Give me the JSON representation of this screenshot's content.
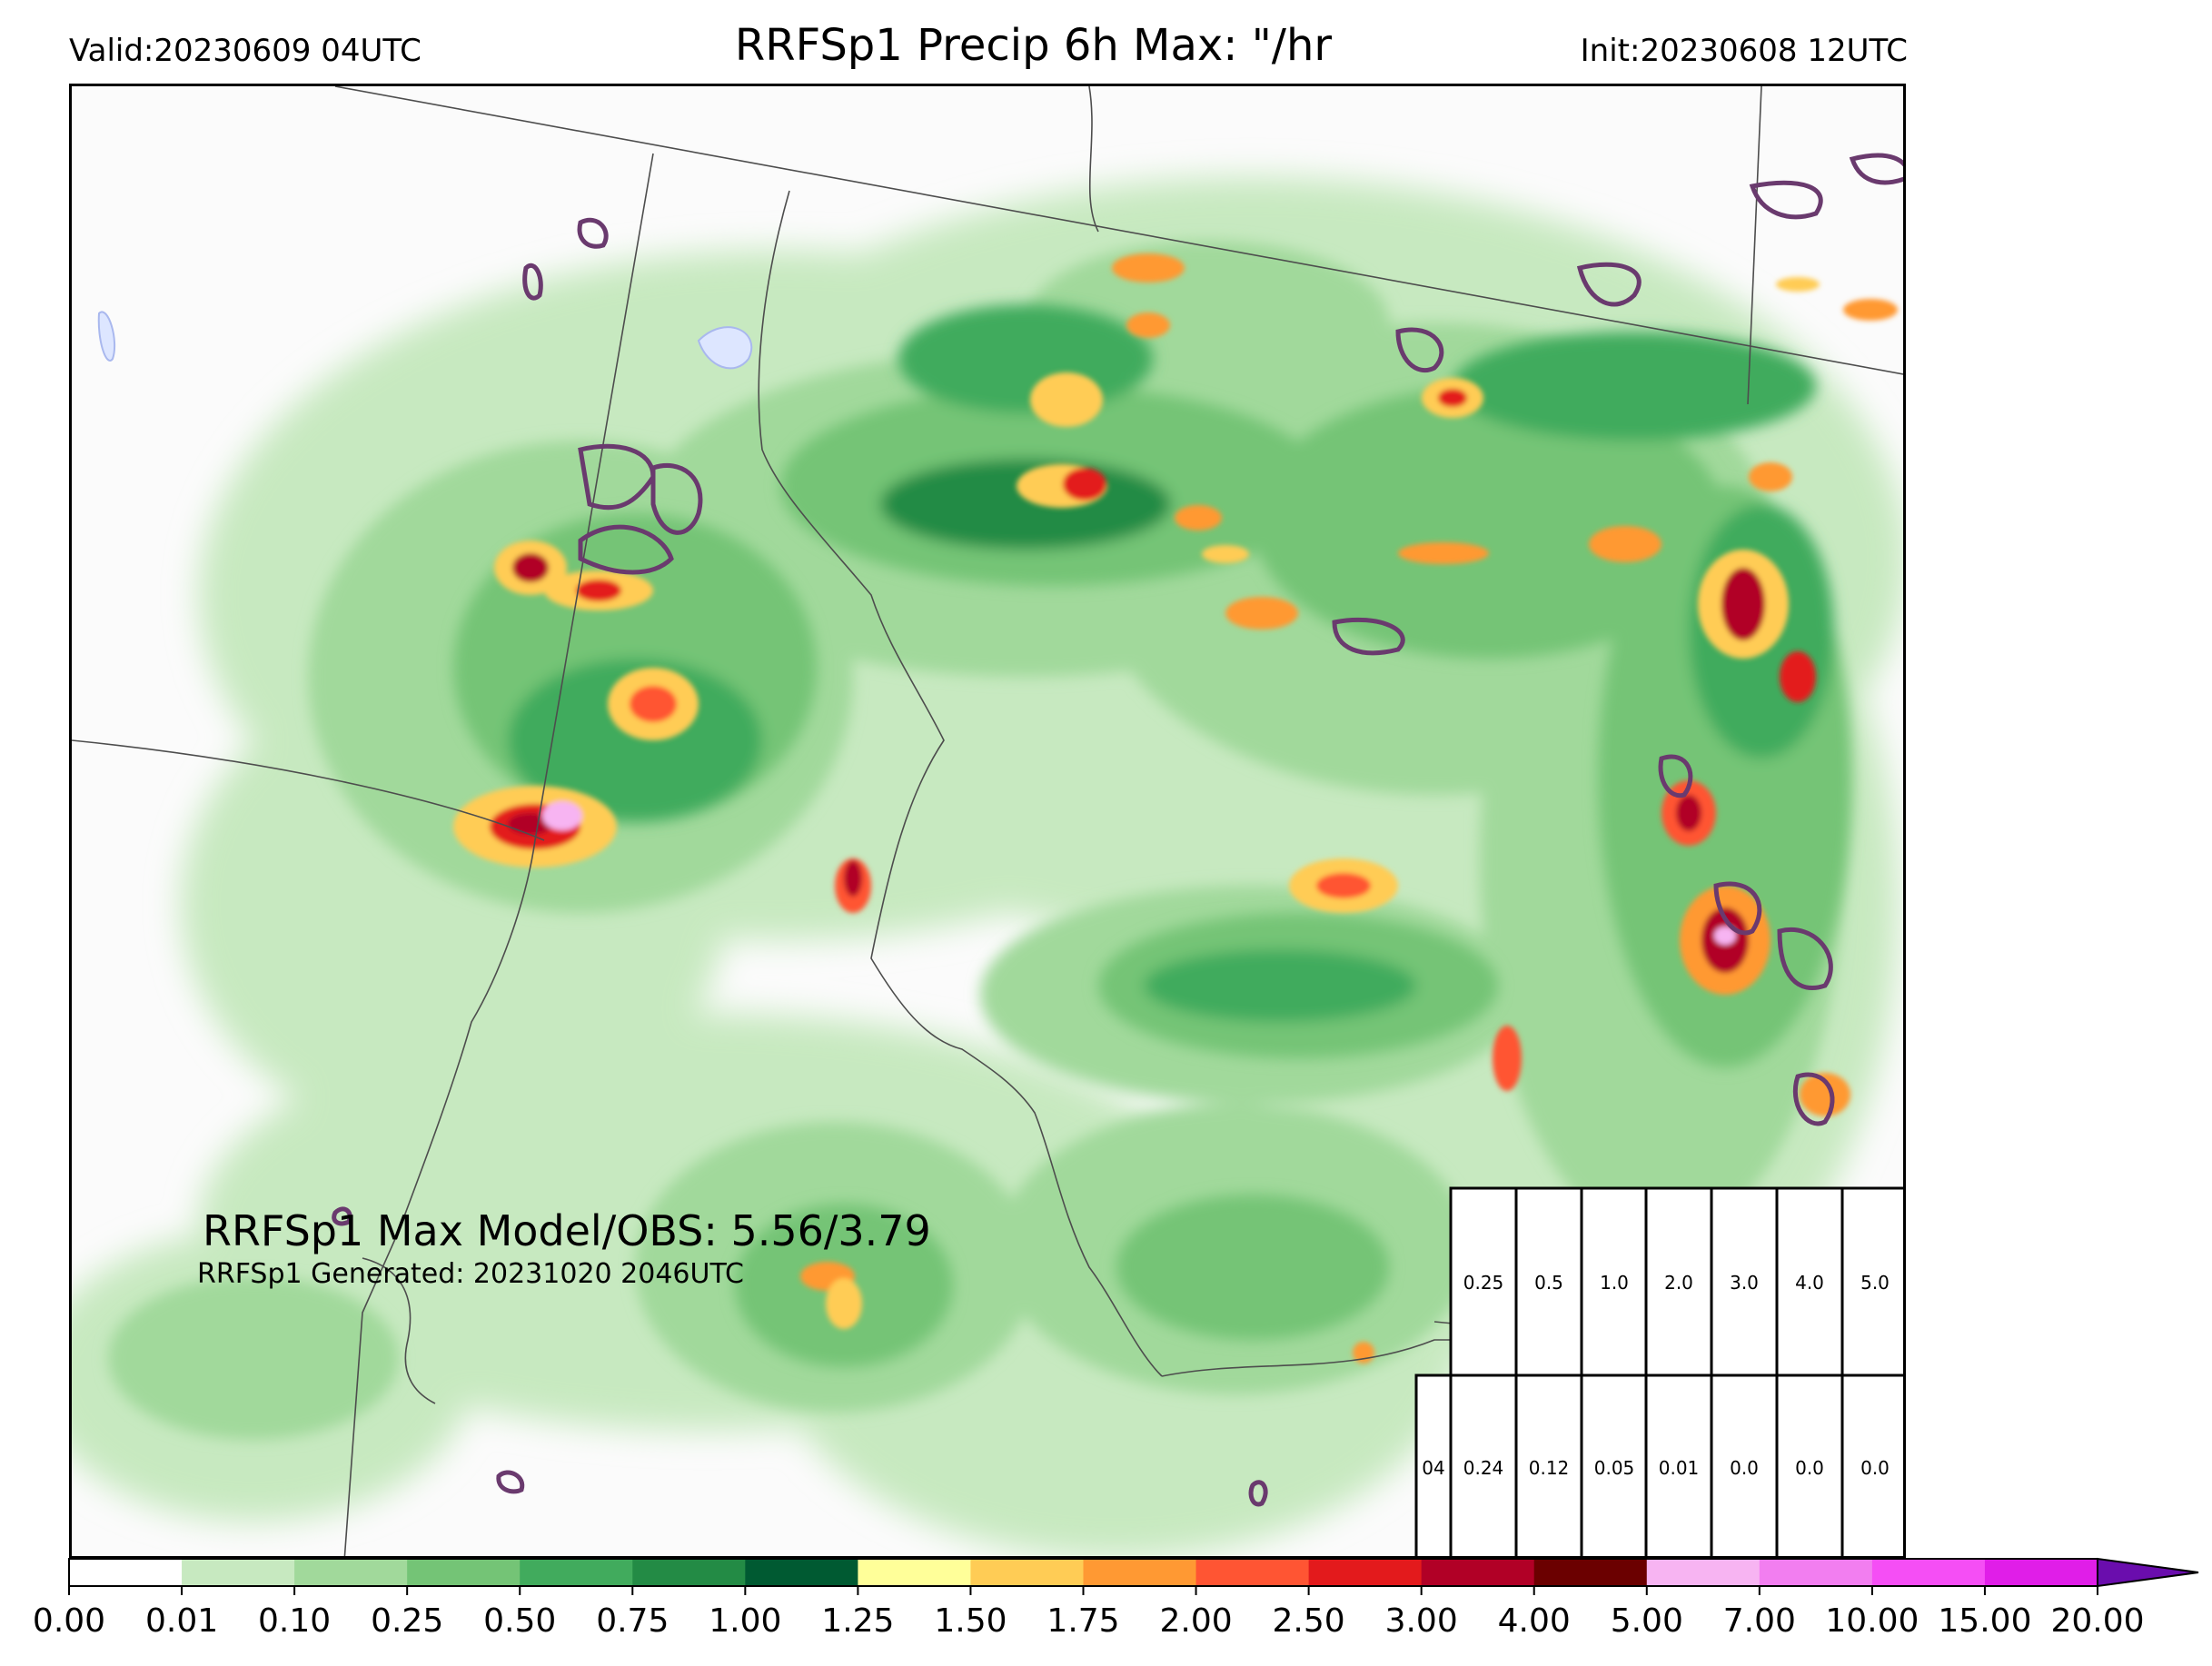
{
  "header": {
    "valid": "Valid:20230609 04UTC",
    "title": "RRFSp1 Precip 6h Max: \"/hr",
    "init": "Init:20230608 12UTC"
  },
  "annotations": {
    "max_model_obs": "RRFSp1 Max Model/OBS: 5.56/3.79",
    "generated": "RRFSp1 Generated: 20231020 2046UTC"
  },
  "colorbar": {
    "ticks": [
      "0.00",
      "0.01",
      "0.10",
      "0.25",
      "0.50",
      "0.75",
      "1.00",
      "1.25",
      "1.50",
      "1.75",
      "2.00",
      "2.50",
      "3.00",
      "4.00",
      "5.00",
      "7.00",
      "10.00",
      "15.00",
      "20.00"
    ],
    "colors": [
      "#ffffff",
      "#c7e9c0",
      "#a1d99b",
      "#74c476",
      "#41ab5d",
      "#238b45",
      "#005a32",
      "#ffff99",
      "#ffcc55",
      "#ff9933",
      "#ff5533",
      "#e31a1c",
      "#b10026",
      "#6b0000",
      "#f7b4f2",
      "#f27ef0",
      "#f54ef5",
      "#e01ee8",
      "#9b12d6"
    ],
    "extend_color": "#6a0dad"
  },
  "table": {
    "top_row": [
      "0.25",
      "0.5",
      "1.0",
      "2.0",
      "3.0",
      "4.0",
      "5.0"
    ],
    "bottom_row": [
      "04",
      "0.24",
      "0.12",
      "0.05",
      "0.01",
      "0.0",
      "0.0",
      "0.0"
    ]
  },
  "legend_colors": {
    "obs_contour": "#6a3a6e",
    "border": "#4d4d4d"
  }
}
